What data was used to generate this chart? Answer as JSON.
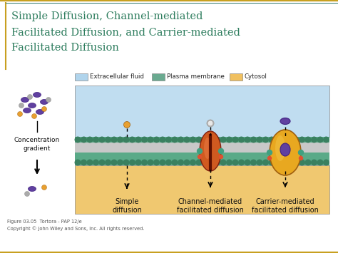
{
  "title_line1": "Simple Diffusion, Channel-mediated",
  "title_line2": "Facilitated Diffusion, and Carrier-mediated",
  "title_line3": "Facilitated Diffusion",
  "title_color": "#2e7d5e",
  "bg_color": "#ffffff",
  "border_color_gold": "#c8a020",
  "border_color_teal": "#4a8a80",
  "legend_labels": [
    "Extracellular fluid",
    "Plasma membrane",
    "Cytosol"
  ],
  "legend_colors": [
    "#b0d4ec",
    "#6aaa90",
    "#f0c060"
  ],
  "extracellular_color": "#c0ddf0",
  "cytosol_color": "#f0c870",
  "teal_dot_dark": "#3a8060",
  "teal_dot_light": "#60b890",
  "gray_stripe_color": "#c8c8c8",
  "caption_text": "Figure 03.05  Tortora - PAP 12/e\nCopyright © John Wiley and Sons, Inc. All rights reserved.",
  "label_simple": "Simple\ndiffusion",
  "label_channel": "Channel-mediated\nfacilitated diffusion",
  "label_carrier": "Carrier-mediated\nfacilitated diffusion",
  "label_conc": "Concentration\ngradient",
  "purple": "#6040a0",
  "orange_mol": "#e8a030",
  "gray_mol": "#aaaaaa",
  "channel_red": "#d05020",
  "carrier_yellow": "#e8a820",
  "teal_accent": "#40a080"
}
